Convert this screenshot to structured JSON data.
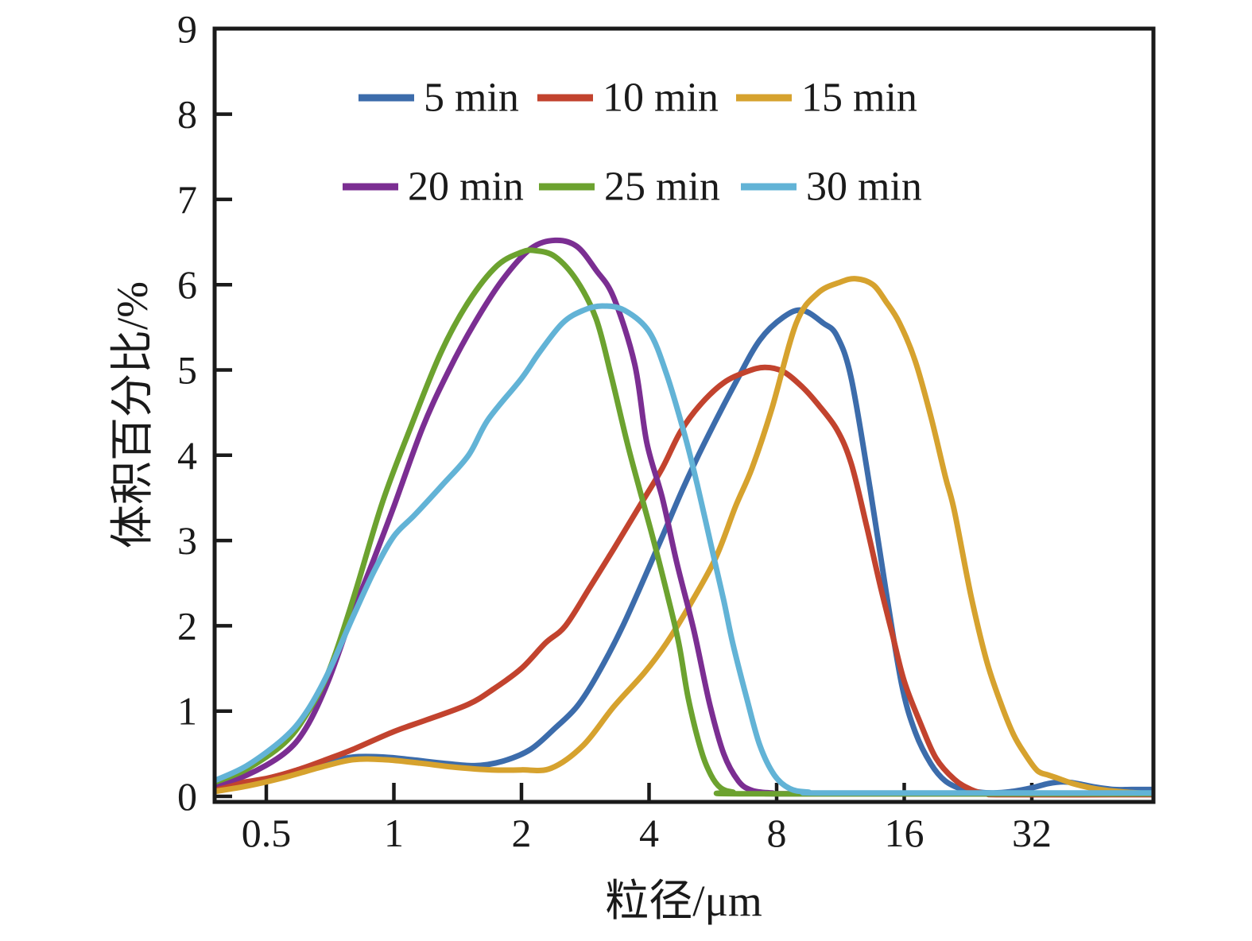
{
  "figure": {
    "background": "#ffffff",
    "axis_color": "#1a1a1a"
  },
  "chart_data": {
    "type": "line",
    "title": "",
    "xlabel": "粒径/μm",
    "ylabel": "体积百分比/%",
    "x_scale": "log2",
    "x_range": [
      0.377,
      62
    ],
    "y_range": [
      0,
      9
    ],
    "x_ticks": [
      0.5,
      1,
      2,
      4,
      8,
      16,
      32
    ],
    "x_tick_labels": [
      "0.5",
      "1",
      "2",
      "4",
      "8",
      "16",
      "32"
    ],
    "y_ticks": [
      0,
      1,
      2,
      3,
      4,
      5,
      6,
      7,
      8,
      9
    ],
    "y_tick_labels": [
      "0",
      "1",
      "2",
      "3",
      "4",
      "5",
      "6",
      "7",
      "8",
      "9"
    ],
    "grid": false,
    "legend_position": "inside-top",
    "series": [
      {
        "name": "5 min",
        "color": "#3c6cab",
        "points": [
          [
            0.38,
            0.08
          ],
          [
            0.45,
            0.15
          ],
          [
            0.55,
            0.26
          ],
          [
            0.67,
            0.38
          ],
          [
            0.8,
            0.46
          ],
          [
            0.95,
            0.46
          ],
          [
            1.1,
            0.43
          ],
          [
            1.3,
            0.39
          ],
          [
            1.55,
            0.36
          ],
          [
            1.8,
            0.41
          ],
          [
            2.1,
            0.55
          ],
          [
            2.4,
            0.8
          ],
          [
            2.7,
            1.05
          ],
          [
            3.0,
            1.4
          ],
          [
            3.47,
            2.0
          ],
          [
            4.2,
            2.93
          ],
          [
            4.8,
            3.6
          ],
          [
            5.4,
            4.14
          ],
          [
            6.4,
            4.85
          ],
          [
            7.3,
            5.35
          ],
          [
            8.3,
            5.62
          ],
          [
            9.2,
            5.7
          ],
          [
            10.3,
            5.55
          ],
          [
            11.1,
            5.4
          ],
          [
            12,
            4.9
          ],
          [
            13.3,
            3.6
          ],
          [
            14.5,
            2.4
          ],
          [
            15.8,
            1.3
          ],
          [
            17,
            0.75
          ],
          [
            18.5,
            0.38
          ],
          [
            20,
            0.18
          ],
          [
            22,
            0.08
          ],
          [
            24,
            0.05
          ],
          [
            26,
            0.04
          ],
          [
            29,
            0.06
          ],
          [
            32,
            0.1
          ],
          [
            35,
            0.15
          ],
          [
            38,
            0.17
          ],
          [
            41,
            0.15
          ],
          [
            45,
            0.11
          ],
          [
            50,
            0.08
          ],
          [
            55,
            0.08
          ],
          [
            62,
            0.08
          ]
        ]
      },
      {
        "name": "10 min",
        "color": "#c2432e",
        "points": [
          [
            0.38,
            0.12
          ],
          [
            0.5,
            0.21
          ],
          [
            0.6,
            0.32
          ],
          [
            0.7,
            0.44
          ],
          [
            0.8,
            0.55
          ],
          [
            1.0,
            0.76
          ],
          [
            1.2,
            0.9
          ],
          [
            1.5,
            1.08
          ],
          [
            1.72,
            1.26
          ],
          [
            2.0,
            1.5
          ],
          [
            2.28,
            1.8
          ],
          [
            2.54,
            2.0
          ],
          [
            2.9,
            2.45
          ],
          [
            3.3,
            2.9
          ],
          [
            3.85,
            3.45
          ],
          [
            4.3,
            3.85
          ],
          [
            4.75,
            4.28
          ],
          [
            5.3,
            4.6
          ],
          [
            6.0,
            4.85
          ],
          [
            6.8,
            4.98
          ],
          [
            7.5,
            5.03
          ],
          [
            8.3,
            4.98
          ],
          [
            9.2,
            4.8
          ],
          [
            10,
            4.6
          ],
          [
            11.1,
            4.3
          ],
          [
            12,
            3.9
          ],
          [
            13,
            3.2
          ],
          [
            14,
            2.5
          ],
          [
            15,
            1.9
          ],
          [
            16,
            1.35
          ],
          [
            17.5,
            0.85
          ],
          [
            19,
            0.45
          ],
          [
            21,
            0.2
          ],
          [
            23,
            0.08
          ],
          [
            25,
            0.03
          ],
          [
            28,
            0.02
          ],
          [
            62,
            0.02
          ]
        ]
      },
      {
        "name": "15 min",
        "color": "#d6a22e",
        "points": [
          [
            0.38,
            0.06
          ],
          [
            0.45,
            0.12
          ],
          [
            0.55,
            0.22
          ],
          [
            0.67,
            0.34
          ],
          [
            0.8,
            0.43
          ],
          [
            0.95,
            0.43
          ],
          [
            1.15,
            0.39
          ],
          [
            1.4,
            0.34
          ],
          [
            1.7,
            0.31
          ],
          [
            2.0,
            0.31
          ],
          [
            2.35,
            0.33
          ],
          [
            2.8,
            0.6
          ],
          [
            3.3,
            1.05
          ],
          [
            3.9,
            1.45
          ],
          [
            4.4,
            1.8
          ],
          [
            5.0,
            2.25
          ],
          [
            5.75,
            2.8
          ],
          [
            6.4,
            3.4
          ],
          [
            7.0,
            3.85
          ],
          [
            7.8,
            4.55
          ],
          [
            8.9,
            5.55
          ],
          [
            10,
            5.9
          ],
          [
            11.3,
            6.03
          ],
          [
            12.3,
            6.07
          ],
          [
            13.5,
            6.0
          ],
          [
            14.5,
            5.8
          ],
          [
            15.6,
            5.55
          ],
          [
            17,
            5.1
          ],
          [
            18.5,
            4.45
          ],
          [
            20,
            3.75
          ],
          [
            21,
            3.35
          ],
          [
            23,
            2.35
          ],
          [
            25,
            1.6
          ],
          [
            27,
            1.1
          ],
          [
            29,
            0.72
          ],
          [
            31,
            0.48
          ],
          [
            33,
            0.3
          ],
          [
            35,
            0.25
          ],
          [
            37,
            0.21
          ],
          [
            40,
            0.15
          ],
          [
            44,
            0.1
          ],
          [
            48,
            0.07
          ],
          [
            53,
            0.05
          ],
          [
            62,
            0.03
          ]
        ]
      },
      {
        "name": "20 min",
        "color": "#7b2e92",
        "points": [
          [
            0.38,
            0.14
          ],
          [
            0.45,
            0.25
          ],
          [
            0.55,
            0.5
          ],
          [
            0.62,
            0.8
          ],
          [
            0.7,
            1.35
          ],
          [
            0.8,
            2.15
          ],
          [
            0.9,
            2.8
          ],
          [
            1.0,
            3.4
          ],
          [
            1.17,
            4.33
          ],
          [
            1.35,
            5.0
          ],
          [
            1.55,
            5.55
          ],
          [
            1.8,
            6.05
          ],
          [
            2.1,
            6.42
          ],
          [
            2.4,
            6.52
          ],
          [
            2.7,
            6.45
          ],
          [
            3.0,
            6.17
          ],
          [
            3.3,
            5.85
          ],
          [
            3.7,
            5.07
          ],
          [
            3.95,
            4.15
          ],
          [
            4.3,
            3.5
          ],
          [
            4.65,
            2.74
          ],
          [
            5.1,
            1.95
          ],
          [
            5.55,
            1.1
          ],
          [
            6.0,
            0.5
          ],
          [
            6.5,
            0.18
          ],
          [
            7.0,
            0.07
          ],
          [
            7.8,
            0.04
          ],
          [
            9,
            0.03
          ],
          [
            62,
            0.03
          ]
        ]
      },
      {
        "name": "25 min",
        "color": "#6ca22f",
        "points": [
          [
            0.38,
            0.17
          ],
          [
            0.45,
            0.32
          ],
          [
            0.55,
            0.62
          ],
          [
            0.62,
            0.95
          ],
          [
            0.7,
            1.45
          ],
          [
            0.8,
            2.3
          ],
          [
            0.94,
            3.45
          ],
          [
            1.1,
            4.35
          ],
          [
            1.29,
            5.2
          ],
          [
            1.5,
            5.8
          ],
          [
            1.75,
            6.22
          ],
          [
            2.0,
            6.38
          ],
          [
            2.15,
            6.4
          ],
          [
            2.4,
            6.33
          ],
          [
            2.7,
            6.05
          ],
          [
            3.0,
            5.6
          ],
          [
            3.25,
            4.95
          ],
          [
            3.55,
            4.15
          ],
          [
            3.8,
            3.6
          ],
          [
            4.1,
            3.0
          ],
          [
            4.4,
            2.4
          ],
          [
            4.7,
            1.8
          ],
          [
            4.95,
            1.15
          ],
          [
            5.3,
            0.55
          ],
          [
            5.6,
            0.25
          ],
          [
            5.9,
            0.1
          ],
          [
            6.3,
            0.05
          ],
          [
            7,
            0.03
          ],
          [
            62,
            0.03
          ]
        ]
      },
      {
        "name": "30 min",
        "color": "#62b3d6",
        "points": [
          [
            0.38,
            0.19
          ],
          [
            0.45,
            0.36
          ],
          [
            0.55,
            0.68
          ],
          [
            0.62,
            0.98
          ],
          [
            0.7,
            1.45
          ],
          [
            0.8,
            2.1
          ],
          [
            0.9,
            2.65
          ],
          [
            1.0,
            3.05
          ],
          [
            1.12,
            3.3
          ],
          [
            1.3,
            3.65
          ],
          [
            1.5,
            4.0
          ],
          [
            1.67,
            4.42
          ],
          [
            2.0,
            4.9
          ],
          [
            2.2,
            5.2
          ],
          [
            2.5,
            5.55
          ],
          [
            2.8,
            5.7
          ],
          [
            3.1,
            5.75
          ],
          [
            3.5,
            5.7
          ],
          [
            4.0,
            5.45
          ],
          [
            4.4,
            4.95
          ],
          [
            4.86,
            4.23
          ],
          [
            5.2,
            3.65
          ],
          [
            5.6,
            2.95
          ],
          [
            6.0,
            2.3
          ],
          [
            6.3,
            1.8
          ],
          [
            6.8,
            1.15
          ],
          [
            7.3,
            0.6
          ],
          [
            7.9,
            0.25
          ],
          [
            8.6,
            0.09
          ],
          [
            9.5,
            0.05
          ],
          [
            11,
            0.04
          ],
          [
            62,
            0.04
          ]
        ]
      }
    ],
    "legend": {
      "rows": [
        [
          "5 min",
          "10 min",
          "15 min"
        ],
        [
          "20 min",
          "25 min",
          "30 min"
        ]
      ]
    }
  }
}
